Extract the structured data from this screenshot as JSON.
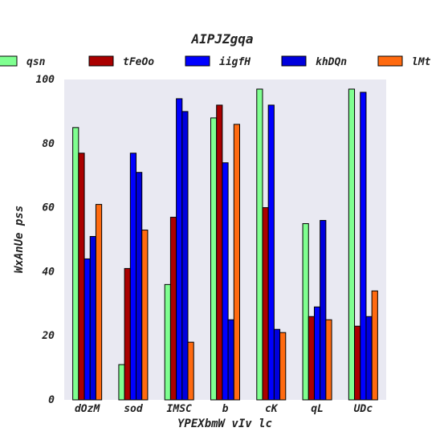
{
  "chart_data": {
    "type": "bar",
    "title": "AIPJZgqa",
    "xlabel": "YPEXbmW vIv lc",
    "ylabel": "WxAnUe pss",
    "ylim": [
      0,
      100
    ],
    "yticks": [
      "0",
      "20",
      "40",
      "60",
      "80",
      "100"
    ],
    "categories": [
      "dOzM",
      "sod",
      "IMSC",
      "b",
      "cK",
      "qL",
      "UDc"
    ],
    "series": [
      {
        "name": "qsn",
        "color": "#7fff90",
        "values": [
          85,
          11,
          36,
          88,
          97,
          55,
          97
        ]
      },
      {
        "name": "tFeOo",
        "color": "#aa0000",
        "values": [
          77,
          41,
          57,
          92,
          60,
          26,
          23
        ]
      },
      {
        "name": "iigfH",
        "color": "#0000ff",
        "values": [
          44,
          77,
          94,
          74,
          92,
          29,
          96
        ]
      },
      {
        "name": "khDQn",
        "color": "#0000dd",
        "values": [
          51,
          71,
          90,
          25,
          22,
          56,
          26
        ]
      },
      {
        "name": "lMt",
        "color": "#ff6a10",
        "values": [
          61,
          53,
          18,
          86,
          21,
          25,
          34
        ]
      }
    ],
    "grid": false,
    "legend_position": "top"
  }
}
